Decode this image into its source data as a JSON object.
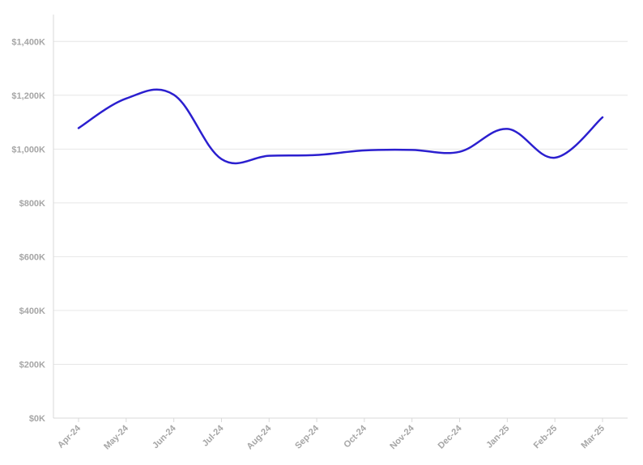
{
  "chart_data": {
    "type": "line",
    "title": "",
    "xlabel": "",
    "ylabel": "",
    "categories": [
      "Apr-24",
      "May-24",
      "Jun-24",
      "Jul-24",
      "Aug-24",
      "Sep-24",
      "Oct-24",
      "Nov-24",
      "Dec-24",
      "Jan-25",
      "Feb-25",
      "Mar-25"
    ],
    "series": [
      {
        "values": [
          1078000,
          1188000,
          1202000,
          963000,
          975000,
          978000,
          995000,
          997000,
          990000,
          1075000,
          968000,
          1118000
        ],
        "color": "#2b1fcf"
      }
    ],
    "ylim": [
      0,
      1500000
    ],
    "yticks": [
      0,
      200000,
      400000,
      600000,
      800000,
      1000000,
      1200000,
      1400000
    ],
    "ytick_labels": [
      "$0K",
      "$200K",
      "$400K",
      "$600K",
      "$800K",
      "$1,000K",
      "$1,200K",
      "$1,400K"
    ],
    "grid": true,
    "legend": "none",
    "colors": {
      "line": "#2b1fcf",
      "grid": "#e6e6e6",
      "axis": "#d9d9d9",
      "tick_text": "#a6a6a6"
    }
  }
}
